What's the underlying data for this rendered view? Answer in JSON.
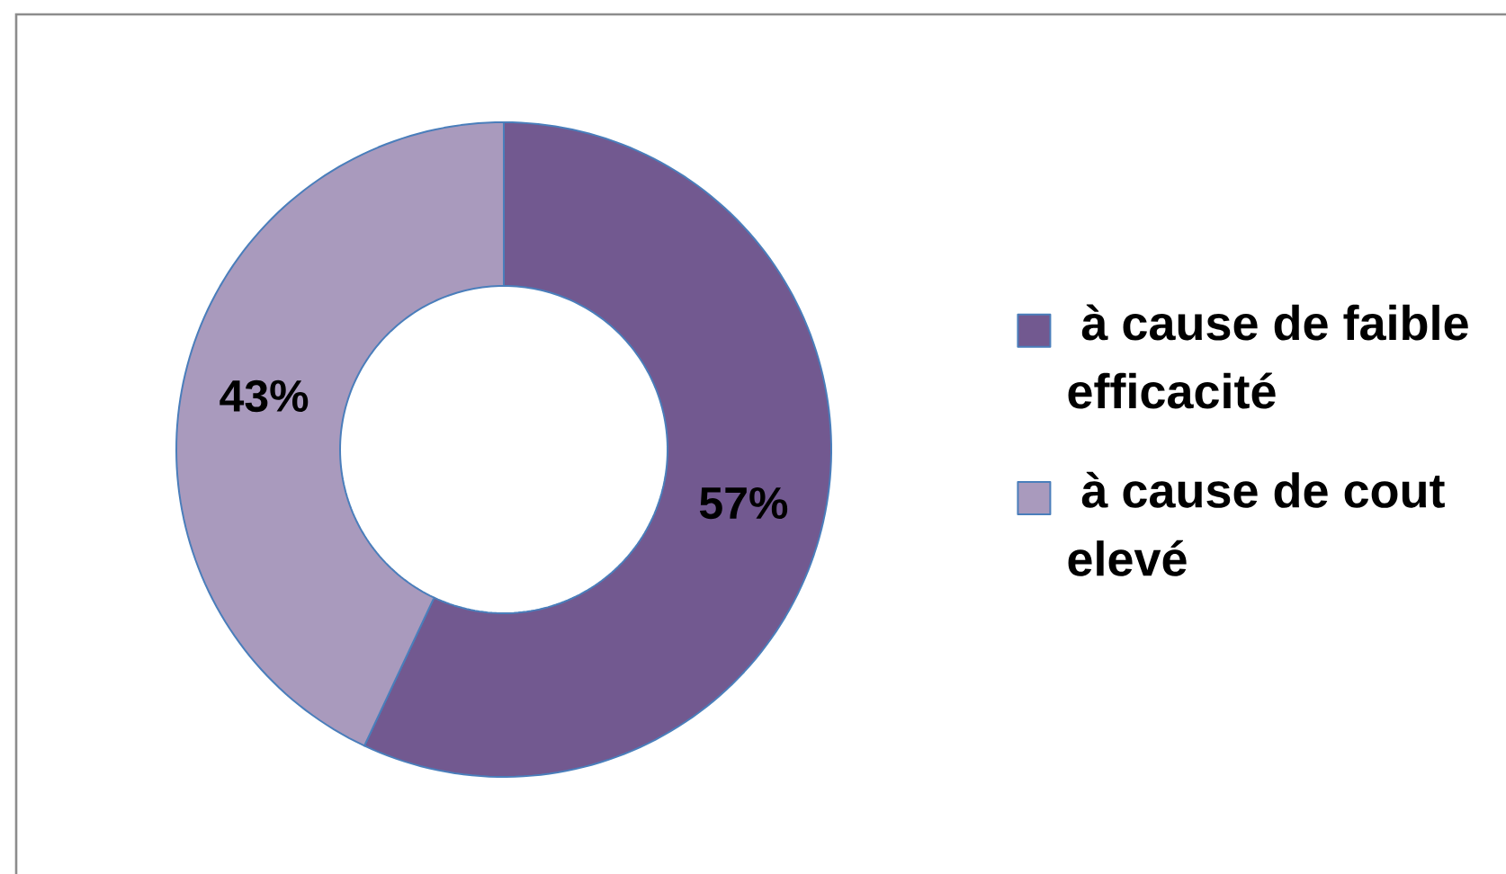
{
  "chart_data": {
    "type": "donut",
    "categories": [
      "à cause de faible efficacité",
      "à cause de cout elevé"
    ],
    "values": [
      57,
      43
    ],
    "colors": [
      "#725990",
      "#a99abd"
    ],
    "value_labels": [
      "57%",
      "43%"
    ],
    "legend": "right"
  }
}
